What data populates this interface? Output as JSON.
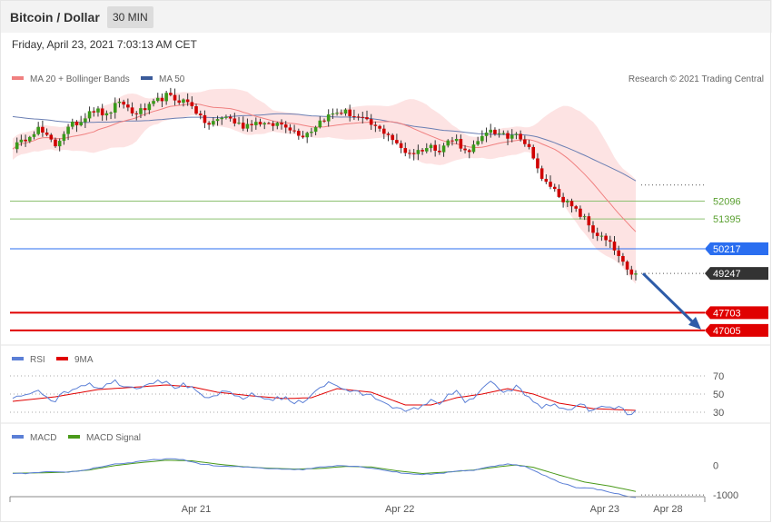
{
  "header": {
    "title": "Bitcoin / Dollar",
    "timeframe": "30 MIN"
  },
  "timestamp": "Friday, April 23, 2021 7:03:13 AM CET",
  "legend_main": [
    {
      "label": "MA 20 + Bollinger Bands",
      "color": "#f08080"
    },
    {
      "label": "MA 50",
      "color": "#3b5b9a"
    }
  ],
  "copyright": "Research © 2021 Trading Central",
  "chart_data": [
    {
      "type": "candlestick",
      "title": "Bitcoin / Dollar",
      "ylim": [
        46500,
        57800
      ],
      "last_price": 49247,
      "levels": [
        {
          "value": 52096,
          "label": "52096",
          "kind": "resistance",
          "color": "#8cc070"
        },
        {
          "value": 51395,
          "label": "51395",
          "kind": "resistance",
          "color": "#8cc070"
        },
        {
          "value": 50217,
          "label": "50217",
          "kind": "pivot",
          "color": "#2a6ef0"
        },
        {
          "value": 49247,
          "label": "49247",
          "kind": "last",
          "color": "#333333"
        },
        {
          "value": 47703,
          "label": "47703",
          "kind": "target",
          "color": "#e00000"
        },
        {
          "value": 47005,
          "label": "47005",
          "kind": "target",
          "color": "#e00000"
        }
      ],
      "projection": {
        "from": 49247,
        "to": 47005,
        "color": "#2e5ca8"
      },
      "path": [
        [
          0,
          54250
        ],
        [
          2,
          54400
        ],
        [
          4,
          54750
        ],
        [
          6,
          54950
        ],
        [
          8,
          54600
        ],
        [
          10,
          54300
        ],
        [
          12,
          54800
        ],
        [
          14,
          55100
        ],
        [
          16,
          55250
        ],
        [
          18,
          55700
        ],
        [
          20,
          55650
        ],
        [
          22,
          55450
        ],
        [
          24,
          55850
        ],
        [
          26,
          55950
        ],
        [
          28,
          55550
        ],
        [
          30,
          55650
        ],
        [
          32,
          55800
        ],
        [
          34,
          56050
        ],
        [
          36,
          56250
        ],
        [
          38,
          56100
        ],
        [
          40,
          56050
        ],
        [
          42,
          55900
        ],
        [
          44,
          55350
        ],
        [
          46,
          55100
        ],
        [
          48,
          55300
        ],
        [
          50,
          55450
        ],
        [
          52,
          55200
        ],
        [
          54,
          55050
        ],
        [
          56,
          55200
        ],
        [
          58,
          55200
        ],
        [
          60,
          55050
        ],
        [
          62,
          55150
        ],
        [
          64,
          55100
        ],
        [
          66,
          54850
        ],
        [
          68,
          54700
        ],
        [
          70,
          54900
        ],
        [
          72,
          55250
        ],
        [
          74,
          55450
        ],
        [
          76,
          55600
        ],
        [
          78,
          55600
        ],
        [
          80,
          55450
        ],
        [
          82,
          55300
        ],
        [
          84,
          55100
        ],
        [
          86,
          54900
        ],
        [
          88,
          54750
        ],
        [
          90,
          54300
        ],
        [
          92,
          54050
        ],
        [
          94,
          54000
        ],
        [
          96,
          54150
        ],
        [
          98,
          54250
        ],
        [
          100,
          54150
        ],
        [
          102,
          54450
        ],
        [
          104,
          54500
        ],
        [
          106,
          54050
        ],
        [
          108,
          54250
        ],
        [
          110,
          54550
        ],
        [
          112,
          54950
        ],
        [
          114,
          54700
        ],
        [
          116,
          54600
        ],
        [
          118,
          54850
        ],
        [
          120,
          54400
        ],
        [
          122,
          53900
        ],
        [
          124,
          52900
        ],
        [
          126,
          52700
        ],
        [
          128,
          52350
        ],
        [
          130,
          52000
        ],
        [
          132,
          51700
        ],
        [
          134,
          51400
        ],
        [
          136,
          50900
        ],
        [
          138,
          50650
        ],
        [
          140,
          50400
        ],
        [
          142,
          49900
        ],
        [
          144,
          49300
        ],
        [
          146,
          49247
        ]
      ],
      "time_labels": [
        {
          "label": "Apr 21",
          "frac": 0.268
        },
        {
          "label": "Apr 22",
          "frac": 0.561
        },
        {
          "label": "Apr 23",
          "frac": 0.856
        },
        {
          "label": "Apr 28",
          "frac": 0.947
        }
      ]
    },
    {
      "type": "line",
      "title": "RSI",
      "series": [
        {
          "name": "RSI",
          "color": "#5b7fd6"
        },
        {
          "name": "9MA",
          "color": "#e00000"
        }
      ],
      "yticks": [
        70,
        50,
        30
      ],
      "ylim": [
        22,
        80
      ],
      "rsi_path": [
        [
          0,
          44
        ],
        [
          3,
          50
        ],
        [
          6,
          55
        ],
        [
          8,
          48
        ],
        [
          10,
          42
        ],
        [
          12,
          52
        ],
        [
          14,
          55
        ],
        [
          16,
          60
        ],
        [
          18,
          62
        ],
        [
          20,
          57
        ],
        [
          22,
          60
        ],
        [
          24,
          64
        ],
        [
          26,
          60
        ],
        [
          28,
          57
        ],
        [
          30,
          59
        ],
        [
          32,
          62
        ],
        [
          34,
          66
        ],
        [
          36,
          62
        ],
        [
          38,
          58
        ],
        [
          40,
          60
        ],
        [
          42,
          56
        ],
        [
          44,
          48
        ],
        [
          46,
          45
        ],
        [
          48,
          50
        ],
        [
          50,
          52
        ],
        [
          52,
          48
        ],
        [
          54,
          46
        ],
        [
          56,
          49
        ],
        [
          58,
          47
        ],
        [
          60,
          44
        ],
        [
          62,
          46
        ],
        [
          64,
          45
        ],
        [
          66,
          40
        ],
        [
          68,
          42
        ],
        [
          70,
          50
        ],
        [
          72,
          58
        ],
        [
          74,
          62
        ],
        [
          76,
          59
        ],
        [
          78,
          55
        ],
        [
          80,
          52
        ],
        [
          82,
          50
        ],
        [
          84,
          48
        ],
        [
          86,
          44
        ],
        [
          88,
          40
        ],
        [
          90,
          34
        ],
        [
          92,
          30
        ],
        [
          94,
          33
        ],
        [
          96,
          38
        ],
        [
          98,
          42
        ],
        [
          100,
          40
        ],
        [
          102,
          50
        ],
        [
          104,
          52
        ],
        [
          106,
          40
        ],
        [
          108,
          46
        ],
        [
          110,
          56
        ],
        [
          112,
          62
        ],
        [
          114,
          55
        ],
        [
          116,
          52
        ],
        [
          118,
          58
        ],
        [
          120,
          50
        ],
        [
          122,
          42
        ],
        [
          124,
          36
        ],
        [
          126,
          38
        ],
        [
          128,
          36
        ],
        [
          130,
          32
        ],
        [
          132,
          38
        ],
        [
          134,
          36
        ],
        [
          136,
          31
        ],
        [
          138,
          36
        ],
        [
          140,
          34
        ],
        [
          142,
          36
        ],
        [
          144,
          28
        ],
        [
          146,
          31
        ]
      ],
      "ma_path": [
        [
          0,
          42
        ],
        [
          10,
          47
        ],
        [
          20,
          55
        ],
        [
          30,
          58
        ],
        [
          36,
          60
        ],
        [
          42,
          58
        ],
        [
          48,
          52
        ],
        [
          56,
          48
        ],
        [
          64,
          45
        ],
        [
          70,
          46
        ],
        [
          76,
          56
        ],
        [
          84,
          52
        ],
        [
          92,
          38
        ],
        [
          98,
          38
        ],
        [
          104,
          46
        ],
        [
          110,
          50
        ],
        [
          116,
          56
        ],
        [
          122,
          50
        ],
        [
          128,
          40
        ],
        [
          136,
          34
        ],
        [
          146,
          32
        ]
      ]
    },
    {
      "type": "line",
      "title": "MACD",
      "series": [
        {
          "name": "MACD",
          "color": "#5b7fd6"
        },
        {
          "name": "MACD Signal",
          "color": "#4a9a1a"
        }
      ],
      "yticks": [
        0,
        -1000
      ],
      "ylim": [
        -1150,
        700
      ],
      "macd_path": [
        [
          0,
          -280
        ],
        [
          4,
          -260
        ],
        [
          8,
          -220
        ],
        [
          12,
          -230
        ],
        [
          16,
          -180
        ],
        [
          20,
          -60
        ],
        [
          24,
          50
        ],
        [
          28,
          100
        ],
        [
          32,
          180
        ],
        [
          36,
          230
        ],
        [
          40,
          190
        ],
        [
          44,
          60
        ],
        [
          48,
          -20
        ],
        [
          52,
          -40
        ],
        [
          56,
          -60
        ],
        [
          60,
          -100
        ],
        [
          64,
          -120
        ],
        [
          68,
          -140
        ],
        [
          72,
          -50
        ],
        [
          76,
          0
        ],
        [
          80,
          -20
        ],
        [
          84,
          -80
        ],
        [
          88,
          -180
        ],
        [
          92,
          -270
        ],
        [
          96,
          -300
        ],
        [
          100,
          -280
        ],
        [
          104,
          -180
        ],
        [
          108,
          -160
        ],
        [
          112,
          -40
        ],
        [
          116,
          60
        ],
        [
          120,
          -30
        ],
        [
          124,
          -300
        ],
        [
          128,
          -560
        ],
        [
          132,
          -740
        ],
        [
          136,
          -780
        ],
        [
          140,
          -900
        ],
        [
          144,
          -1050
        ],
        [
          146,
          -1080
        ]
      ],
      "signal_path": [
        [
          0,
          -260
        ],
        [
          6,
          -250
        ],
        [
          12,
          -230
        ],
        [
          18,
          -150
        ],
        [
          24,
          0
        ],
        [
          30,
          100
        ],
        [
          36,
          180
        ],
        [
          42,
          160
        ],
        [
          48,
          50
        ],
        [
          54,
          -40
        ],
        [
          60,
          -90
        ],
        [
          66,
          -120
        ],
        [
          72,
          -100
        ],
        [
          78,
          -30
        ],
        [
          84,
          -50
        ],
        [
          90,
          -180
        ],
        [
          96,
          -270
        ],
        [
          102,
          -220
        ],
        [
          108,
          -150
        ],
        [
          114,
          -40
        ],
        [
          118,
          20
        ],
        [
          122,
          -60
        ],
        [
          128,
          -320
        ],
        [
          134,
          -560
        ],
        [
          140,
          -700
        ],
        [
          146,
          -880
        ]
      ]
    }
  ]
}
